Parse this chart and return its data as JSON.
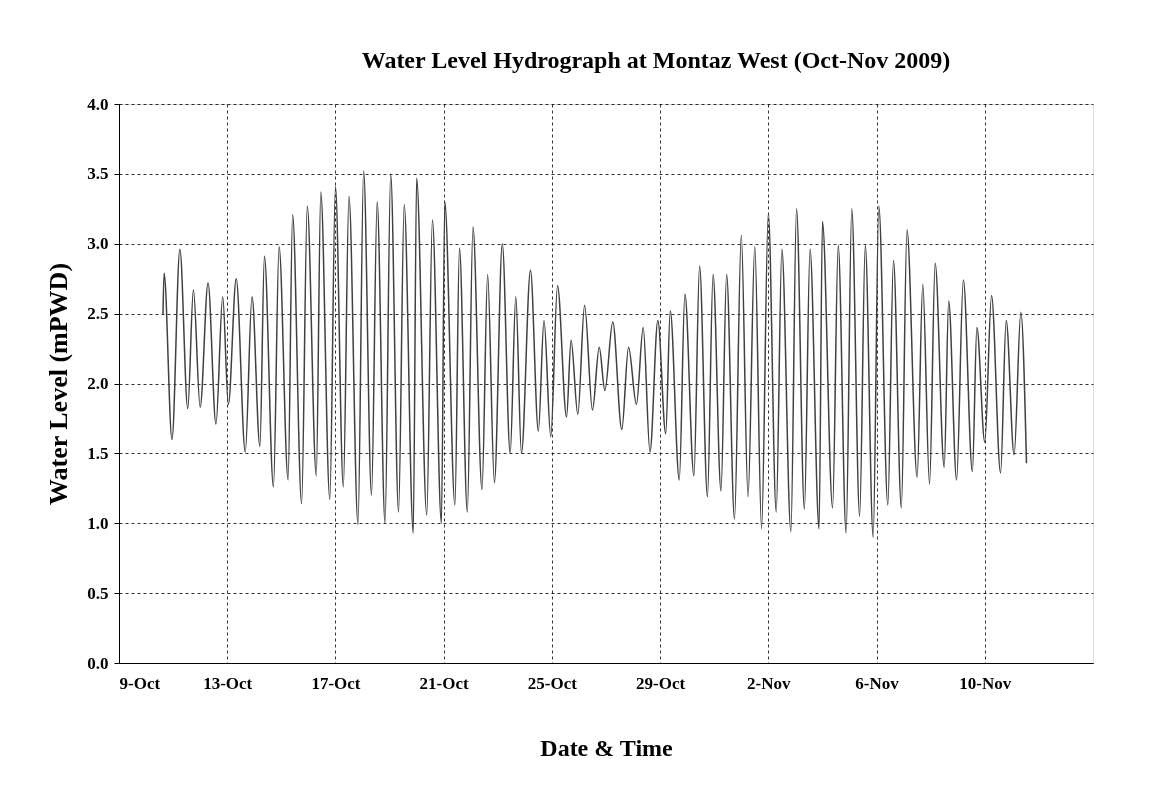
{
  "chart_data": {
    "type": "line",
    "title": "Water Level Hydrograph at Montaz West (Oct-Nov 2009)",
    "xlabel": "Date & Time",
    "ylabel": "Water Level (mPWD)",
    "x": [
      "2009-10-10T15:00",
      "2009-10-10T16:00",
      "2009-10-10T23:00",
      "2009-10-11T06:00",
      "2009-10-11T13:00",
      "2009-10-11T18:00",
      "2009-10-12T00:00",
      "2009-10-12T07:00",
      "2009-10-12T14:00",
      "2009-10-12T20:00",
      "2009-10-13T01:00",
      "2009-10-13T08:00",
      "2009-10-13T16:00",
      "2009-10-13T22:00",
      "2009-10-14T05:00",
      "2009-10-14T09:00",
      "2009-10-14T17:00",
      "2009-10-14T22:00",
      "2009-10-15T06:00",
      "2009-10-15T10:00",
      "2009-10-15T18:00",
      "2009-10-15T23:00",
      "2009-10-16T07:00",
      "2009-10-16T11:00",
      "2009-10-16T19:00",
      "2009-10-17T00:00",
      "2009-10-17T07:00",
      "2009-10-17T12:00",
      "2009-10-17T20:00",
      "2009-10-18T01:00",
      "2009-10-18T08:00",
      "2009-10-18T13:00",
      "2009-10-18T20:00",
      "2009-10-19T01:00",
      "2009-10-19T08:00",
      "2009-10-19T13:00",
      "2009-10-19T21:00",
      "2009-10-20T00:00",
      "2009-10-20T09:00",
      "2009-10-20T14:00",
      "2009-10-20T22:00",
      "2009-10-21T01:00",
      "2009-10-21T10:00",
      "2009-10-21T14:00",
      "2009-10-21T21:00",
      "2009-10-22T02:00",
      "2009-10-22T10:00",
      "2009-10-22T15:00",
      "2009-10-22T21:00",
      "2009-10-23T04:00",
      "2009-10-23T11:00",
      "2009-10-23T16:00",
      "2009-10-23T21:00",
      "2009-10-24T05:00",
      "2009-10-24T12:00",
      "2009-10-24T17:00",
      "2009-10-24T23:00",
      "2009-10-25T05:00",
      "2009-10-25T13:00",
      "2009-10-25T17:00",
      "2009-10-25T23:00",
      "2009-10-26T05:00",
      "2009-10-26T12:00",
      "2009-10-26T18:00",
      "2009-10-26T23:00",
      "2009-10-27T06:00",
      "2009-10-27T14:00",
      "2009-10-27T20:00",
      "2009-10-28T03:00",
      "2009-10-28T09:00",
      "2009-10-28T15:00",
      "2009-10-28T22:00",
      "2009-10-29T05:00",
      "2009-10-29T09:00",
      "2009-10-29T17:00",
      "2009-10-29T22:00",
      "2009-10-30T06:00",
      "2009-10-30T11:00",
      "2009-10-30T18:00",
      "2009-10-30T23:00",
      "2009-10-31T06:00",
      "2009-10-31T11:00",
      "2009-10-31T18:00",
      "2009-11-01T00:00",
      "2009-11-01T06:00",
      "2009-11-01T12:00",
      "2009-11-01T18:00",
      "2009-11-02T00:00",
      "2009-11-02T07:00",
      "2009-11-02T12:00",
      "2009-11-02T20:00",
      "2009-11-03T01:00",
      "2009-11-03T08:00",
      "2009-11-03T13:00",
      "2009-11-03T21:00",
      "2009-11-04T00:00",
      "2009-11-04T09:00",
      "2009-11-04T14:00",
      "2009-11-04T21:00",
      "2009-11-05T02:00",
      "2009-11-05T09:00",
      "2009-11-05T14:00",
      "2009-11-05T21:00",
      "2009-11-06T02:00",
      "2009-11-06T10:00",
      "2009-11-06T15:00",
      "2009-11-06T22:00",
      "2009-11-07T03:00",
      "2009-11-07T12:00",
      "2009-11-07T17:00",
      "2009-11-07T23:00",
      "2009-11-08T04:00",
      "2009-11-08T12:00",
      "2009-11-08T16:00",
      "2009-11-08T23:00",
      "2009-11-09T05:00",
      "2009-11-09T13:00",
      "2009-11-09T17:00",
      "2009-11-10T00:00",
      "2009-11-10T06:00",
      "2009-11-10T14:00",
      "2009-11-10T19:00",
      "2009-11-11T02:00",
      "2009-11-11T08:00",
      "2009-11-11T13:00"
    ],
    "series": [
      {
        "color": "#404040",
        "values": [
          2.49,
          2.79,
          1.6,
          2.96,
          1.82,
          2.67,
          1.83,
          2.72,
          1.71,
          2.62,
          1.85,
          2.75,
          1.51,
          2.62,
          1.55,
          2.91,
          1.26,
          2.98,
          1.31,
          3.21,
          1.14,
          3.27,
          1.34,
          3.37,
          1.17,
          3.41,
          1.26,
          3.34,
          0.99,
          3.52,
          1.2,
          3.3,
          1.0,
          3.5,
          1.08,
          3.28,
          0.93,
          3.47,
          1.06,
          3.17,
          1.0,
          3.3,
          1.13,
          2.97,
          1.08,
          3.12,
          1.24,
          2.78,
          1.29,
          3.0,
          1.5,
          2.62,
          1.5,
          2.81,
          1.66,
          2.45,
          1.62,
          2.7,
          1.76,
          2.31,
          1.78,
          2.56,
          1.81,
          2.26,
          1.95,
          2.44,
          1.67,
          2.26,
          1.85,
          2.4,
          1.51,
          2.45,
          1.64,
          2.52,
          1.31,
          2.64,
          1.34,
          2.84,
          1.19,
          2.78,
          1.23,
          2.78,
          1.03,
          3.06,
          1.19,
          2.98,
          0.96,
          3.22,
          1.08,
          2.96,
          0.94,
          3.25,
          1.1,
          2.96,
          0.96,
          3.16,
          1.11,
          2.99,
          0.93,
          3.25,
          1.05,
          2.99,
          0.9,
          3.27,
          1.13,
          2.88,
          1.11,
          3.1,
          1.33,
          2.71,
          1.28,
          2.86,
          1.4,
          2.59,
          1.31,
          2.74,
          1.37,
          2.4,
          1.58,
          2.63,
          1.36,
          2.45,
          1.49,
          2.51,
          1.43
        ]
      }
    ],
    "xlim": [
      "2009-10-09",
      "2009-11-14"
    ],
    "xticks": [
      {
        "value": "2009-10-09",
        "label": "9-Oct"
      },
      {
        "value": "2009-10-13",
        "label": "13-Oct"
      },
      {
        "value": "2009-10-17",
        "label": "17-Oct"
      },
      {
        "value": "2009-10-21",
        "label": "21-Oct"
      },
      {
        "value": "2009-10-25",
        "label": "25-Oct"
      },
      {
        "value": "2009-10-29",
        "label": "29-Oct"
      },
      {
        "value": "2009-11-02",
        "label": "2-Nov"
      },
      {
        "value": "2009-11-06",
        "label": "6-Nov"
      },
      {
        "value": "2009-11-10",
        "label": "10-Nov"
      }
    ],
    "ylim": [
      0,
      4
    ],
    "yticks": [
      {
        "value": 0,
        "label": "0.0"
      },
      {
        "value": 0.5,
        "label": "0.5"
      },
      {
        "value": 1,
        "label": "1.0"
      },
      {
        "value": 1.5,
        "label": "1.5"
      },
      {
        "value": 2,
        "label": "2.0"
      },
      {
        "value": 2.5,
        "label": "2.5"
      },
      {
        "value": 3,
        "label": "3.0"
      },
      {
        "value": 3.5,
        "label": "3.5"
      },
      {
        "value": 4,
        "label": "4.0"
      }
    ],
    "grid": true,
    "marker": "none",
    "line_style": "solid"
  }
}
